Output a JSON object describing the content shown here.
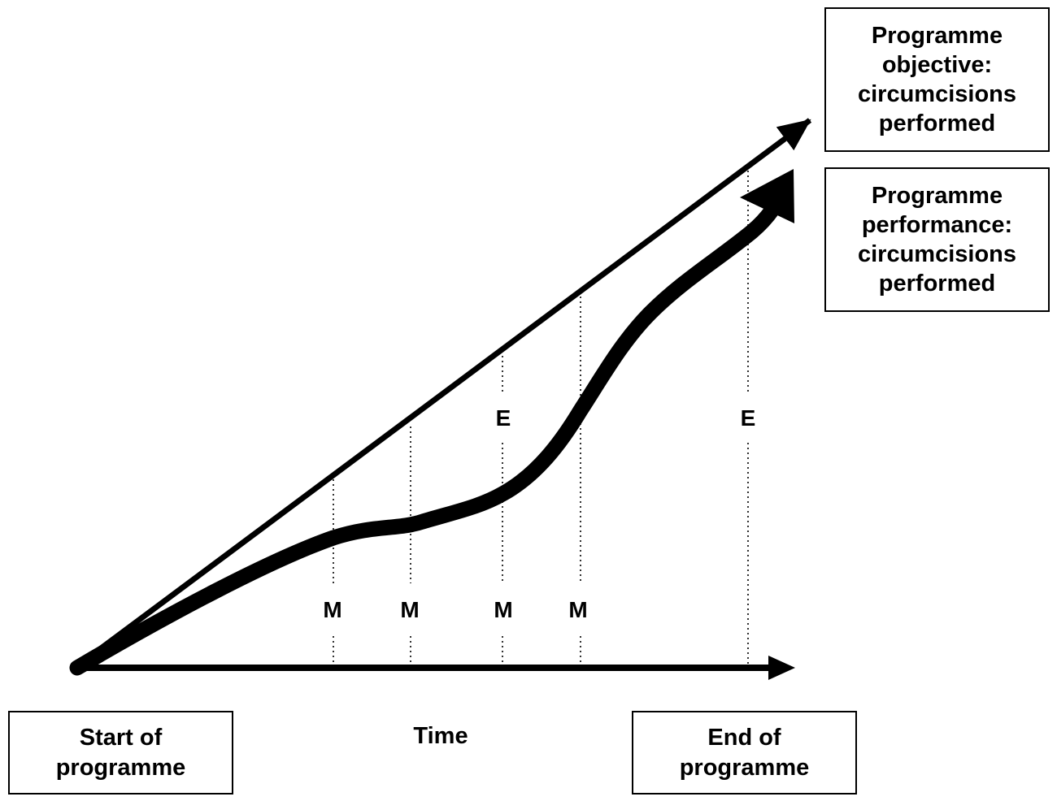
{
  "boxes": {
    "objective_label": "Programme objective: circumcisions performed",
    "performance_label": "Programme performance: circumcisions performed",
    "start_label": "Start of programme",
    "end_label": "End of programme"
  },
  "axis": {
    "time_label": "Time"
  },
  "markers": {
    "monitoring": [
      "M",
      "M",
      "M",
      "M"
    ],
    "evaluation": [
      "E",
      "E"
    ]
  },
  "colors": {
    "line": "#000000",
    "background": "#ffffff"
  }
}
